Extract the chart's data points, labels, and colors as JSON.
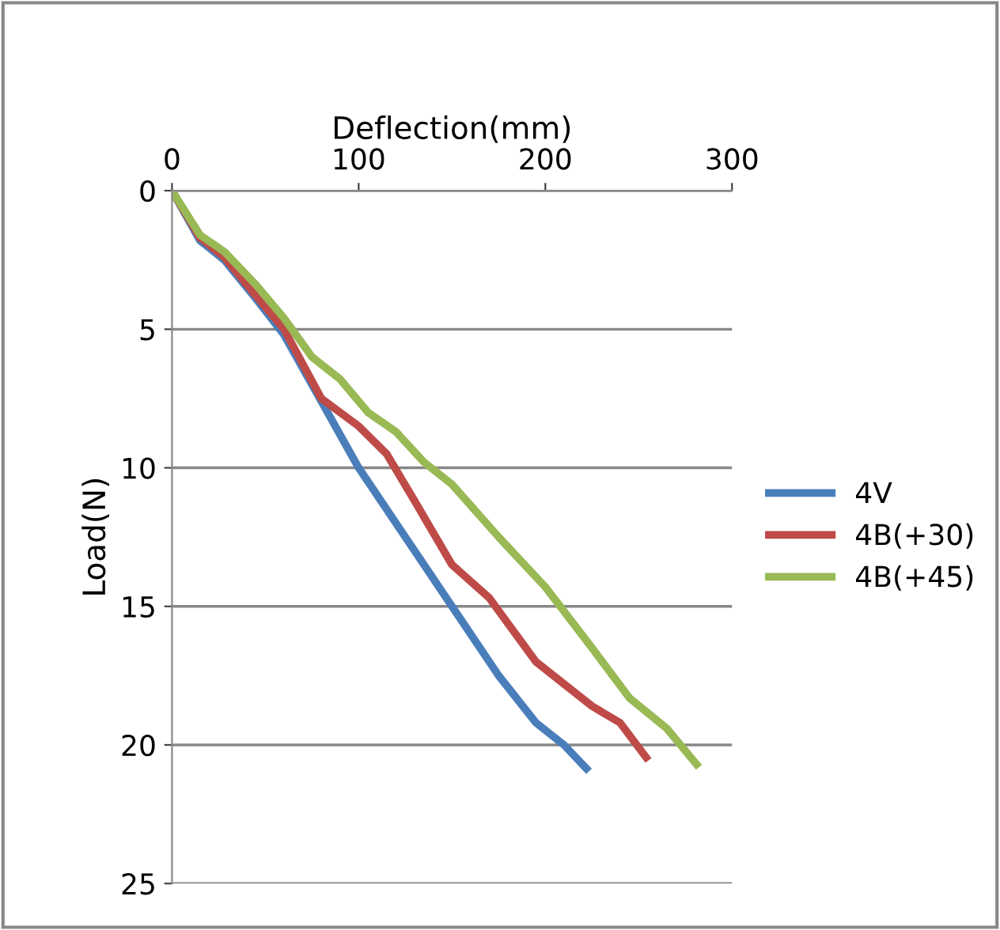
{
  "chart_data": {
    "type": "line",
    "xlabel": "Deflection(mm)",
    "ylabel": "Load(N)",
    "xlim": [
      0,
      300
    ],
    "xticks": [
      0,
      100,
      200,
      300
    ],
    "ylim": [
      25,
      0
    ],
    "yticks": [
      0,
      5,
      10,
      15,
      20,
      25
    ],
    "grid": "y",
    "legend": "right",
    "marker": "none",
    "line_style": "solid",
    "series": [
      {
        "name": "4V",
        "color": "#4a7ebb",
        "x": [
          0,
          15,
          28,
          45,
          60,
          75,
          100,
          125,
          150,
          175,
          195,
          210,
          222
        ],
        "values": [
          0,
          1.8,
          2.5,
          3.9,
          5.2,
          7,
          10,
          12.5,
          15,
          17.5,
          19.2,
          20,
          20.85
        ]
      },
      {
        "name": "4B(+30)",
        "color": "#be4b48",
        "x": [
          0,
          15,
          28,
          45,
          60,
          80,
          100,
          115,
          130,
          150,
          170,
          195,
          225,
          240,
          254
        ],
        "values": [
          0,
          1.7,
          2.4,
          3.8,
          5,
          7.5,
          8.5,
          9.5,
          11.2,
          13.5,
          14.7,
          17,
          18.6,
          19.2,
          20.45
        ]
      },
      {
        "name": "4B(+45)",
        "color": "#98b954",
        "x": [
          0,
          15,
          28,
          45,
          60,
          75,
          90,
          105,
          120,
          135,
          150,
          175,
          200,
          225,
          245,
          265,
          281
        ],
        "values": [
          0,
          1.6,
          2.2,
          3.4,
          4.6,
          6,
          6.8,
          8,
          8.7,
          9.8,
          10.6,
          12.5,
          14.3,
          16.5,
          18.3,
          19.4,
          20.7
        ]
      }
    ]
  }
}
